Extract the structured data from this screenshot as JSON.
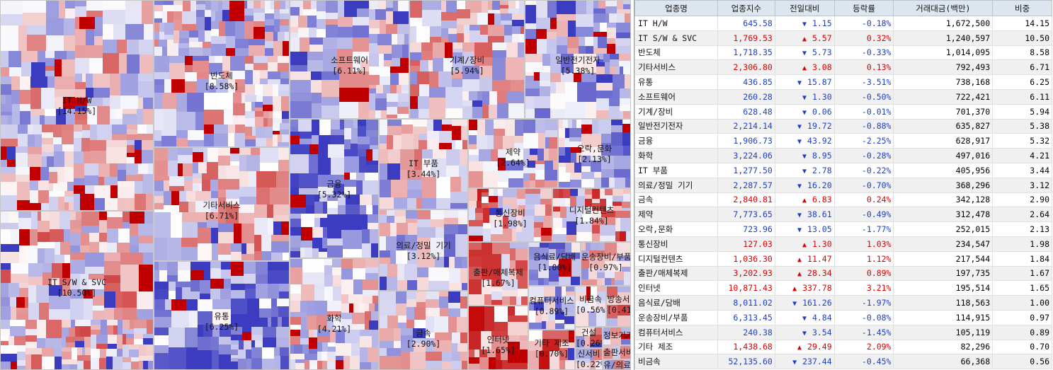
{
  "table": {
    "headers": [
      "업종명",
      "업종지수",
      "전일대비",
      "등락률",
      "거래대금(백만)",
      "비중"
    ],
    "rows": [
      {
        "name": "IT H/W",
        "index": "645.58",
        "dir": "down",
        "change": "1.15",
        "rate": "-0.18%",
        "amount": "1,672,500",
        "weight": "14.15"
      },
      {
        "name": "IT S/W & SVC",
        "index": "1,769.53",
        "dir": "up",
        "change": "5.57",
        "rate": "0.32%",
        "amount": "1,240,597",
        "weight": "10.50"
      },
      {
        "name": "반도체",
        "index": "1,718.35",
        "dir": "down",
        "change": "5.73",
        "rate": "-0.33%",
        "amount": "1,014,095",
        "weight": "8.58"
      },
      {
        "name": "기타서비스",
        "index": "2,306.80",
        "dir": "up",
        "change": "3.08",
        "rate": "0.13%",
        "amount": "792,493",
        "weight": "6.71"
      },
      {
        "name": "유통",
        "index": "436.85",
        "dir": "down",
        "change": "15.87",
        "rate": "-3.51%",
        "amount": "738,168",
        "weight": "6.25"
      },
      {
        "name": "소프트웨어",
        "index": "260.28",
        "dir": "down",
        "change": "1.30",
        "rate": "-0.50%",
        "amount": "722,421",
        "weight": "6.11"
      },
      {
        "name": "기계/장비",
        "index": "628.48",
        "dir": "down",
        "change": "0.06",
        "rate": "-0.01%",
        "amount": "701,370",
        "weight": "5.94"
      },
      {
        "name": "일반전기전자",
        "index": "2,214.14",
        "dir": "down",
        "change": "19.72",
        "rate": "-0.88%",
        "amount": "635,827",
        "weight": "5.38"
      },
      {
        "name": "금융",
        "index": "1,906.73",
        "dir": "down",
        "change": "43.92",
        "rate": "-2.25%",
        "amount": "628,917",
        "weight": "5.32"
      },
      {
        "name": "화학",
        "index": "3,224.06",
        "dir": "down",
        "change": "8.95",
        "rate": "-0.28%",
        "amount": "497,016",
        "weight": "4.21"
      },
      {
        "name": "IT 부품",
        "index": "1,277.50",
        "dir": "down",
        "change": "2.78",
        "rate": "-0.22%",
        "amount": "405,956",
        "weight": "3.44"
      },
      {
        "name": "의료/정밀 기기",
        "index": "2,287.57",
        "dir": "down",
        "change": "16.20",
        "rate": "-0.70%",
        "amount": "368,296",
        "weight": "3.12"
      },
      {
        "name": "금속",
        "index": "2,840.81",
        "dir": "up",
        "change": "6.83",
        "rate": "0.24%",
        "amount": "342,128",
        "weight": "2.90"
      },
      {
        "name": "제약",
        "index": "7,773.65",
        "dir": "down",
        "change": "38.61",
        "rate": "-0.49%",
        "amount": "312,478",
        "weight": "2.64"
      },
      {
        "name": "오락,문화",
        "index": "723.96",
        "dir": "down",
        "change": "13.05",
        "rate": "-1.77%",
        "amount": "252,015",
        "weight": "2.13"
      },
      {
        "name": "통신장비",
        "index": "127.03",
        "dir": "up",
        "change": "1.30",
        "rate": "1.03%",
        "amount": "234,547",
        "weight": "1.98"
      },
      {
        "name": "디지털컨텐츠",
        "index": "1,036.30",
        "dir": "up",
        "change": "11.47",
        "rate": "1.12%",
        "amount": "217,544",
        "weight": "1.84"
      },
      {
        "name": "출판/매체복제",
        "index": "3,202.93",
        "dir": "up",
        "change": "28.34",
        "rate": "0.89%",
        "amount": "197,735",
        "weight": "1.67"
      },
      {
        "name": "인터넷",
        "index": "10,871.43",
        "dir": "up",
        "change": "337.78",
        "rate": "3.21%",
        "amount": "195,514",
        "weight": "1.65"
      },
      {
        "name": "음식료/담배",
        "index": "8,011.02",
        "dir": "down",
        "change": "161.26",
        "rate": "-1.97%",
        "amount": "118,563",
        "weight": "1.00"
      },
      {
        "name": "운송장비/부품",
        "index": "6,313.45",
        "dir": "down",
        "change": "4.84",
        "rate": "-0.08%",
        "amount": "114,915",
        "weight": "0.97"
      },
      {
        "name": "컴퓨터서비스",
        "index": "240.38",
        "dir": "down",
        "change": "3.54",
        "rate": "-1.45%",
        "amount": "105,119",
        "weight": "0.89"
      },
      {
        "name": "기타 제조",
        "index": "1,438.68",
        "dir": "up",
        "change": "29.49",
        "rate": "2.09%",
        "amount": "82,296",
        "weight": "0.70"
      },
      {
        "name": "비금속",
        "index": "52,135.60",
        "dir": "down",
        "change": "237.44",
        "rate": "-0.45%",
        "amount": "66,368",
        "weight": "0.56"
      }
    ]
  },
  "treemap": {
    "sectors": [
      {
        "key": "ithw",
        "name": "IT H/W",
        "pct": "[14.15%]",
        "rate": -0.18
      },
      {
        "key": "itsw",
        "name": "IT S/W & SVC",
        "pct": "[10.50%]",
        "rate": 0.32
      },
      {
        "key": "semi",
        "name": "반도체",
        "pct": "[8.58%]",
        "rate": -0.33
      },
      {
        "key": "etcsvc",
        "name": "기타서비스",
        "pct": "[6.71%]",
        "rate": 0.13
      },
      {
        "key": "dist",
        "name": "유통",
        "pct": "[6.25%]",
        "rate": -3.51
      },
      {
        "key": "sw",
        "name": "소프트웨어",
        "pct": "[6.11%]",
        "rate": -0.5
      },
      {
        "key": "mach",
        "name": "기계/장비",
        "pct": "[5.94%]",
        "rate": -0.01
      },
      {
        "key": "elec",
        "name": "일반전기전자",
        "pct": "[5.38%]",
        "rate": -0.88
      },
      {
        "key": "fin",
        "name": "금융",
        "pct": "[5.32%]",
        "rate": -2.25
      },
      {
        "key": "chem",
        "name": "화학",
        "pct": "[4.21%]",
        "rate": -0.28
      },
      {
        "key": "itpart",
        "name": "IT 부품",
        "pct": "[3.44%]",
        "rate": -0.22
      },
      {
        "key": "med",
        "name": "의료/정밀 기기",
        "pct": "[3.12%]",
        "rate": -0.7
      },
      {
        "key": "metal",
        "name": "금속",
        "pct": "[2.90%]",
        "rate": 0.24
      },
      {
        "key": "pharma",
        "name": "제약",
        "pct": "[2.64%]",
        "rate": -0.49
      },
      {
        "key": "ent",
        "name": "오락,문화",
        "pct": "[2.13%]",
        "rate": -1.77
      },
      {
        "key": "comm",
        "name": "통신장비",
        "pct": "[1.98%]",
        "rate": 1.03
      },
      {
        "key": "digital",
        "name": "디지털컨텐츠",
        "pct": "[1.84%]",
        "rate": 1.12
      },
      {
        "key": "pub",
        "name": "출판/매체복제",
        "pct": "[1.67%]",
        "rate": 0.89
      },
      {
        "key": "inet",
        "name": "인터넷",
        "pct": "[1.65%]",
        "rate": 3.21
      },
      {
        "key": "food",
        "name": "음식료/담배",
        "pct": "[1.00%]",
        "rate": -1.97
      },
      {
        "key": "trans",
        "name": "운송장비/부품",
        "pct": "[0.97%]",
        "rate": -0.08
      },
      {
        "key": "csvc",
        "name": "컴퓨터서비스",
        "pct": "[0.89%]",
        "rate": -1.45
      },
      {
        "key": "etcmfg",
        "name": "기타 제조",
        "pct": "[0.70%]",
        "rate": 2.09
      },
      {
        "key": "nonmetal",
        "name": "비금속",
        "pct": "[0.56%]",
        "rate": -0.45
      },
      {
        "key": "bcast",
        "name": "방송서",
        "pct": "[0.41%]",
        "rate": 0.5
      },
      {
        "key": "build",
        "name": "건설",
        "pct": "[0.26%]",
        "rate": 0.3
      },
      {
        "key": "info",
        "name": "정보기기",
        "pct": "",
        "rate": -0.3
      },
      {
        "key": "misc1",
        "name": "출판서비",
        "pct": "",
        "rate": 0.4
      },
      {
        "key": "misc2",
        "name": "유/의료",
        "pct": "",
        "rate": -0.2
      },
      {
        "key": "misc3",
        "name": "신서비",
        "pct": "[0.22%]",
        "rate": -0.3
      }
    ]
  },
  "colors": {
    "up_text": "#dd0000",
    "down_text": "#1e40c8",
    "up_cell": "#c00000",
    "down_cell": "#3030c0",
    "header_bg": "#dde5ee"
  }
}
